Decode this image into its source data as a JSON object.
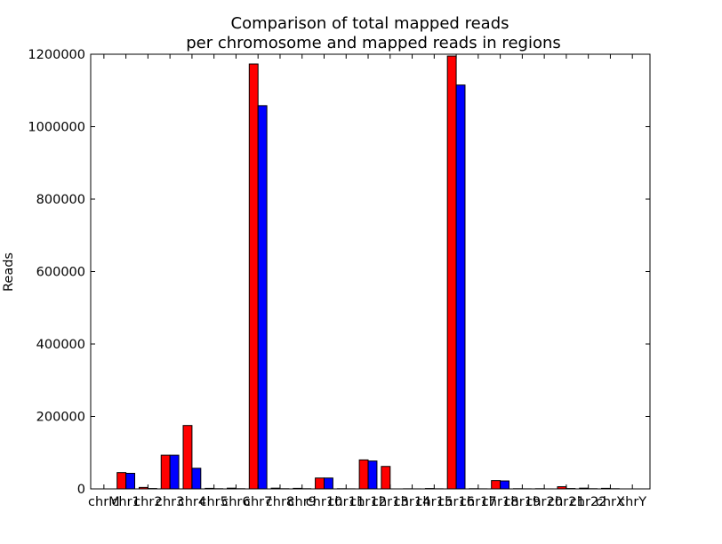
{
  "chart_data": {
    "type": "bar",
    "title": [
      "Comparison of total mapped reads",
      "per chromosome and mapped reads in regions"
    ],
    "xlabel": "",
    "ylabel": "Reads",
    "ylim": [
      0,
      1200000
    ],
    "yticks": [
      0,
      200000,
      400000,
      600000,
      800000,
      1000000,
      1200000
    ],
    "grid": false,
    "categories": [
      "chrM",
      "chr1",
      "chr2",
      "chr3",
      "chr4",
      "chr5",
      "chr6",
      "chr7",
      "chr8",
      "chr9",
      "chr10",
      "chr11",
      "chr12",
      "chr13",
      "chr14",
      "chr15",
      "chr16",
      "chr17",
      "chr18",
      "chr19",
      "chr20",
      "chr21",
      "chr22",
      "chrX",
      "chrY"
    ],
    "series": [
      {
        "color": "#ff0000",
        "values": [
          0,
          45000,
          4000,
          93000,
          175000,
          1500,
          2000,
          1173000,
          2000,
          1500,
          30000,
          500,
          80000,
          62000,
          300,
          1000,
          1195000,
          500,
          23000,
          500,
          500,
          6000,
          2000,
          1500,
          0
        ]
      },
      {
        "color": "#0000ff",
        "values": [
          0,
          43000,
          1000,
          93000,
          57000,
          500,
          500,
          1058000,
          500,
          500,
          30000,
          200,
          77000,
          0,
          100,
          300,
          1115000,
          200,
          22000,
          200,
          100,
          1000,
          500,
          500,
          0
        ]
      }
    ]
  }
}
